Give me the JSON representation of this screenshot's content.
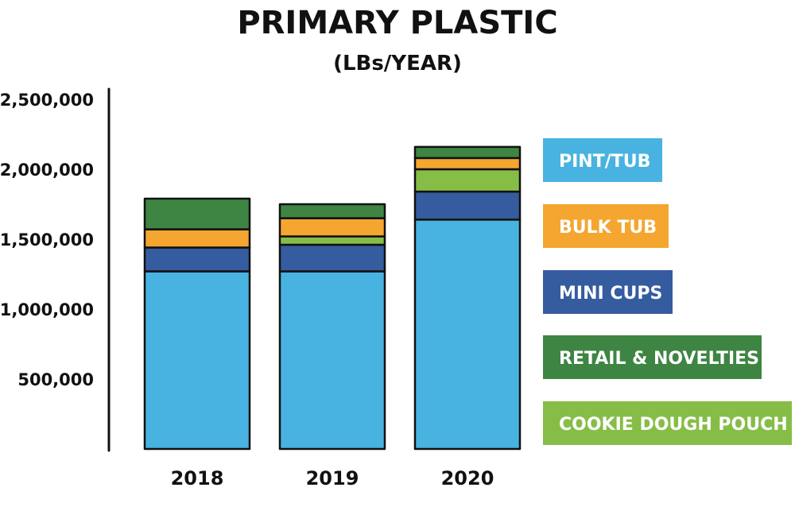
{
  "chart_data": {
    "type": "bar",
    "stacked": true,
    "title": "PRIMARY PLASTIC",
    "subtitle": "(LBs/YEAR)",
    "xlabel": "",
    "ylabel": "",
    "ylim": [
      0,
      2500000
    ],
    "yticks": [
      {
        "value": 500000,
        "label": "500,000"
      },
      {
        "value": 1000000,
        "label": "1,000,000"
      },
      {
        "value": 1500000,
        "label": "1,500,000"
      },
      {
        "value": 2000000,
        "label": "2,000,000"
      },
      {
        "value": 2500000,
        "label": "2,500,000"
      }
    ],
    "grid": false,
    "legend_placement": "right",
    "categories": [
      "2018",
      "2019",
      "2020"
    ],
    "series": [
      {
        "name": "PINT/TUB",
        "color": "#48b3e1",
        "values": [
          1270000,
          1270000,
          1640000
        ]
      },
      {
        "name": "MINI CUPS",
        "color": "#355c9f",
        "values": [
          170000,
          190000,
          200000
        ]
      },
      {
        "name": "COOKIE DOUGH POUCH",
        "color": "#86bd47",
        "values": [
          0,
          60000,
          160000
        ]
      },
      {
        "name": "BULK TUB",
        "color": "#f5a630",
        "values": [
          130000,
          130000,
          80000
        ]
      },
      {
        "name": "RETAIL & NOVELTIES",
        "color": "#3e8543",
        "values": [
          220000,
          100000,
          80000
        ]
      }
    ],
    "legend": [
      "PINT/TUB",
      "BULK TUB",
      "MINI CUPS",
      "RETAIL & NOVELTIES",
      "COOKIE DOUGH POUCH"
    ]
  }
}
